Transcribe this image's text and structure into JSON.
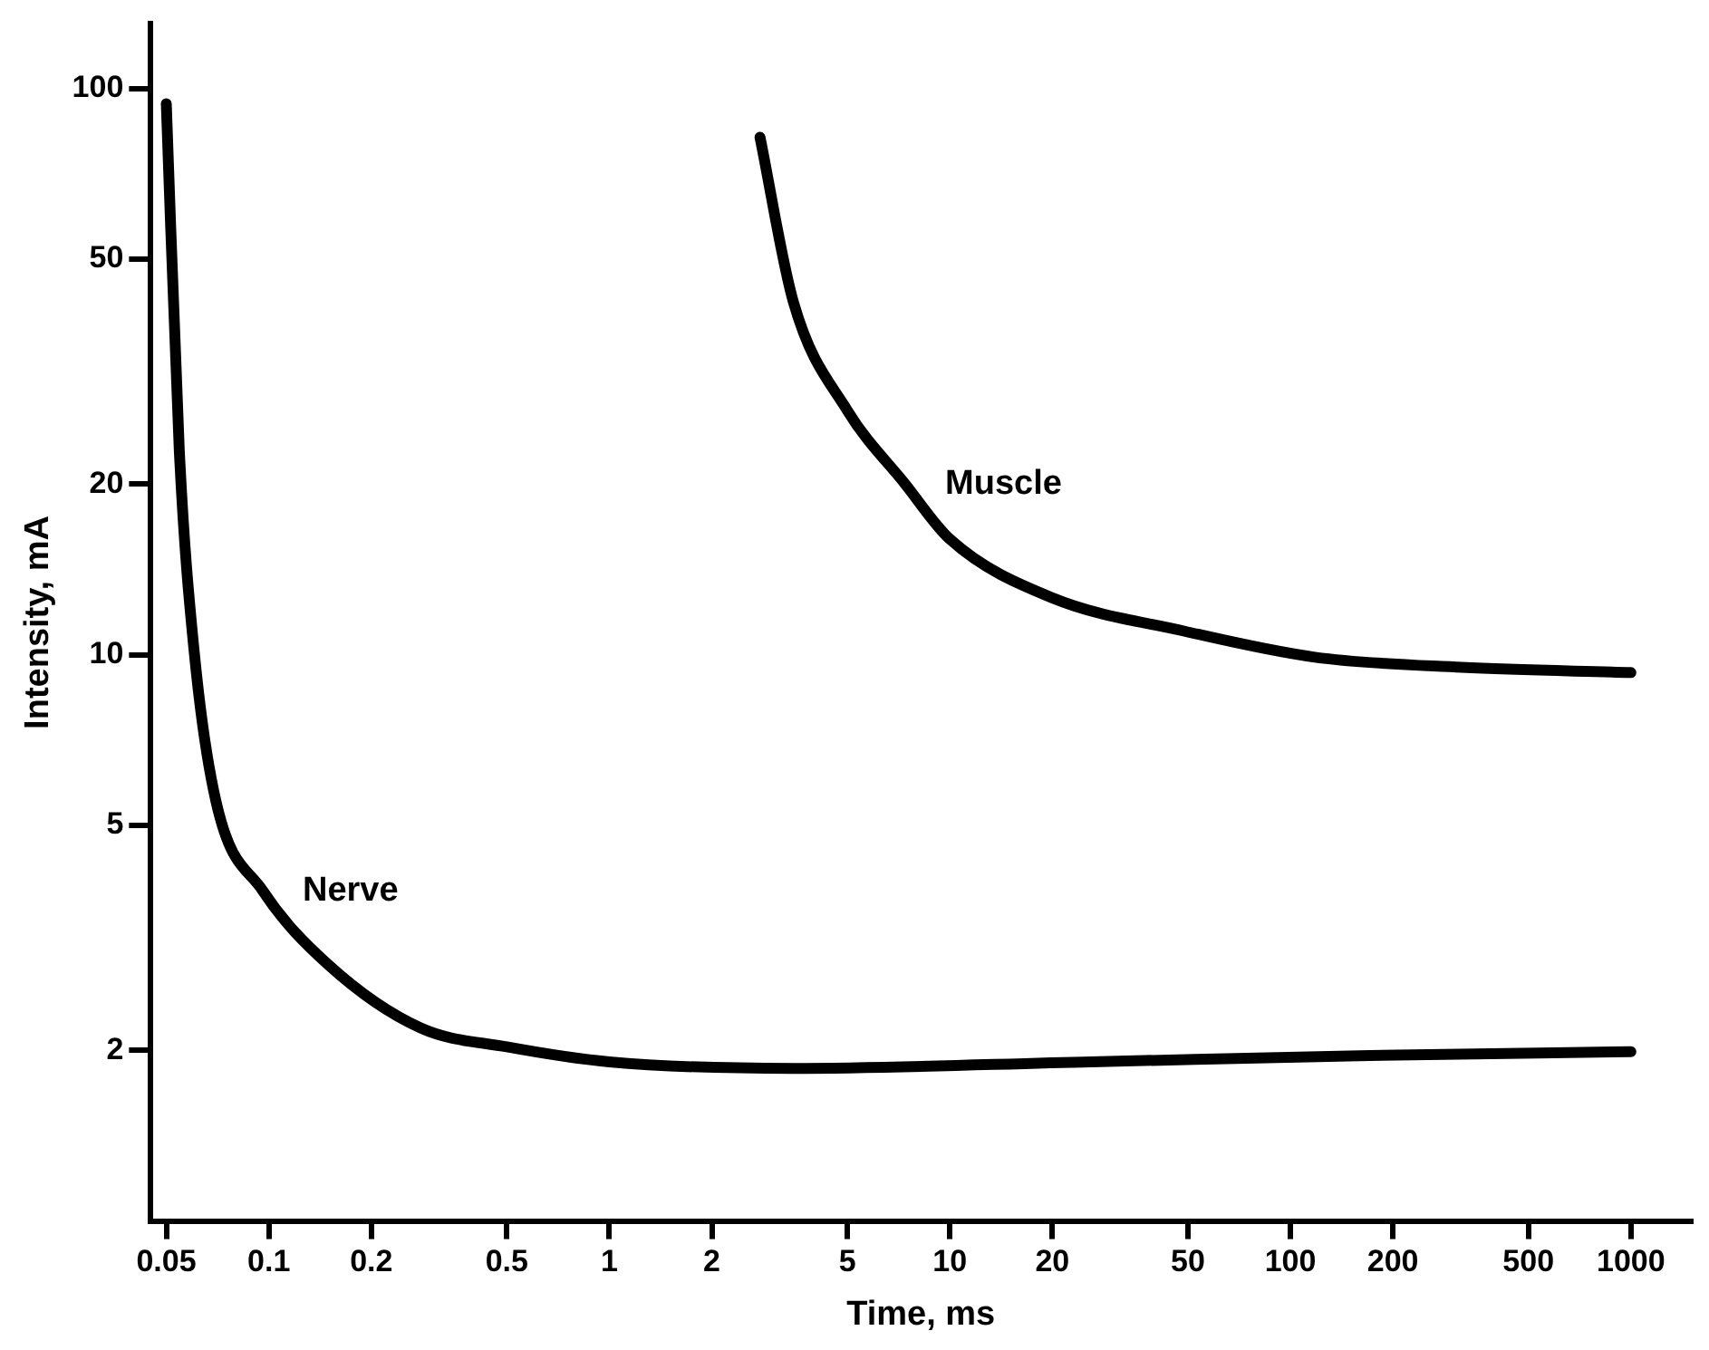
{
  "chart_data": {
    "type": "line",
    "xlabel": "Time, ms",
    "ylabel": "Intensity, mA",
    "log": "xy",
    "grid": false,
    "legend": false,
    "marker": "none",
    "line_style": "solid",
    "xlim": [
      0.045,
      1500
    ],
    "xticks": [
      0.05,
      0.1,
      0.2,
      0.5,
      1,
      2,
      5,
      10,
      20,
      50,
      100,
      200,
      500,
      1000
    ],
    "ylim": [
      1,
      130
    ],
    "yticks": [
      2,
      5,
      10,
      20,
      50,
      100
    ],
    "series": [
      {
        "name": "Nerve",
        "color": "#000000",
        "x": [
          0.05,
          0.0546,
          0.0604,
          0.07,
          0.096,
          0.149,
          0.28,
          0.5,
          1,
          3.47,
          26,
          171,
          1000
        ],
        "values": [
          94,
          22.9,
          10.1,
          5.5,
          3.83,
          2.84,
          2.19,
          2.03,
          1.91,
          1.86,
          1.91,
          1.96,
          1.99
        ]
      },
      {
        "name": "Muscle",
        "color": "#000000",
        "x": [
          2.77,
          3.47,
          5,
          7.4,
          10,
          20,
          49,
          118,
          318,
          1000
        ],
        "values": [
          82,
          42,
          27,
          20,
          16,
          12.6,
          11,
          9.9,
          9.5,
          9.3
        ]
      }
    ]
  }
}
